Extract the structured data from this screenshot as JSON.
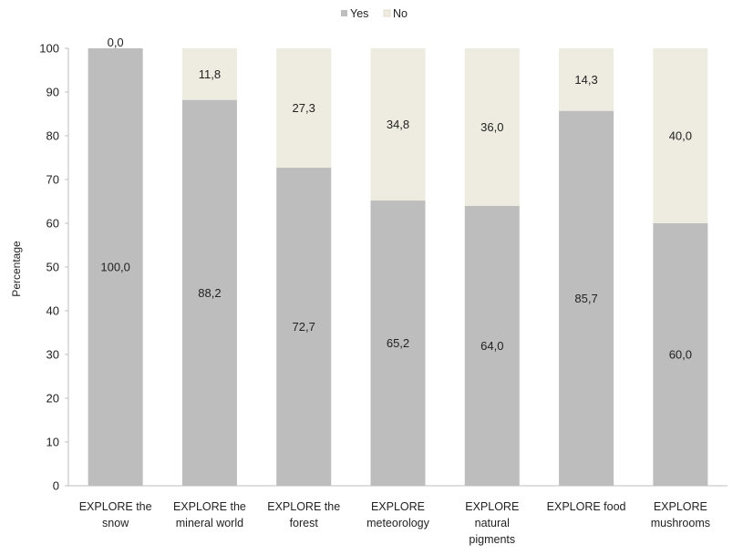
{
  "chart_data": {
    "type": "bar",
    "stacked": true,
    "ylabel": "Percentage",
    "ylim": [
      0,
      100
    ],
    "yticks": [
      "0",
      "10",
      "20",
      "30",
      "40",
      "50",
      "60",
      "70",
      "80",
      "90",
      "100"
    ],
    "categories": [
      [
        "EXPLORE the",
        "snow"
      ],
      [
        "EXPLORE the",
        "mineral world"
      ],
      [
        "EXPLORE the",
        "forest"
      ],
      [
        "EXPLORE",
        "meteorology"
      ],
      [
        "EXPLORE",
        "natural",
        "pigments"
      ],
      [
        "EXPLORE food"
      ],
      [
        "EXPLORE",
        "mushrooms"
      ]
    ],
    "series": [
      {
        "name": "Yes",
        "color": "#bdbdbd",
        "values": [
          100.0,
          88.2,
          72.7,
          65.2,
          64.0,
          85.7,
          60.0
        ],
        "labels": [
          "100,0",
          "88,2",
          "72,7",
          "65,2",
          "64,0",
          "85,7",
          "60,0"
        ]
      },
      {
        "name": "No",
        "color": "#eeebe0",
        "values": [
          0.0,
          11.8,
          27.3,
          34.8,
          36.0,
          14.3,
          40.0
        ],
        "labels": [
          "0,0",
          "11,8",
          "27,3",
          "34,8",
          "36,0",
          "14,3",
          "40,0"
        ]
      }
    ],
    "legend": "top-center",
    "grid": false
  }
}
